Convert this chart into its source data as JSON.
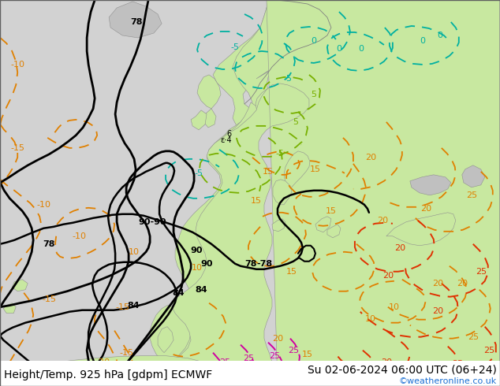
{
  "title_left": "Height/Temp. 925 hPa [gdpm] ECMWF",
  "title_right": "Su 02-06-2024 06:00 UTC (06+24)",
  "credit": "©weatheronline.co.uk",
  "credit_color": "#1a6fd4",
  "font_size_title": 10,
  "font_size_credit": 8,
  "fig_width": 6.34,
  "fig_height": 4.9,
  "dpi": 100,
  "bg_ocean": "#d4d4d4",
  "bg_land_green": "#c8e8a0",
  "bg_land_gray": "#b8b8b8",
  "coastline_color": "#808080",
  "border_color": "#a0a0a0"
}
